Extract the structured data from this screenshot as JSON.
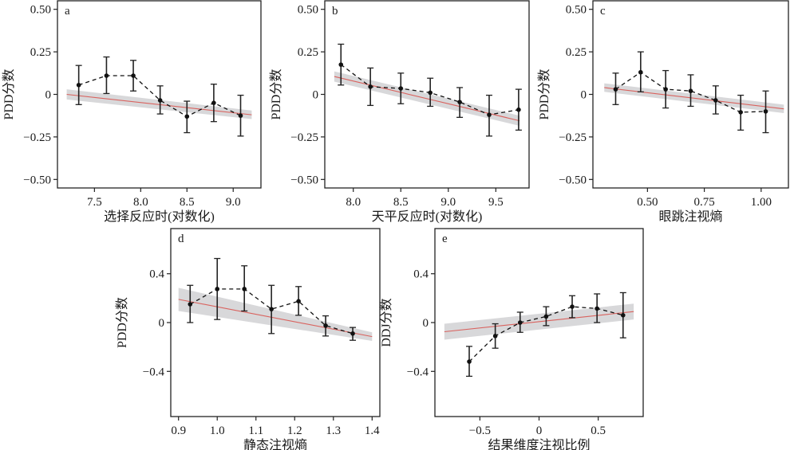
{
  "chart_data": [
    {
      "type": "line",
      "panel": "a",
      "xlabel": "选择反应时(对数化)",
      "ylabel": "PDD分数",
      "xlim": [
        7.1,
        9.3
      ],
      "ylim": [
        -0.55,
        0.55
      ],
      "xticks": [
        7.5,
        8.0,
        8.5,
        9.0
      ],
      "xtick_labels": [
        "7.5",
        "8.0",
        "8.5",
        "9.0"
      ],
      "yticks": [
        0.5,
        0.25,
        0,
        -0.25,
        -0.5
      ],
      "ytick_labels": [
        "0.50",
        "0.25",
        "0",
        "−0.25",
        "−0.50"
      ],
      "points": {
        "x": [
          7.33,
          7.63,
          7.92,
          8.21,
          8.5,
          8.79,
          9.08
        ],
        "y": [
          0.055,
          0.11,
          0.11,
          -0.035,
          -0.13,
          -0.05,
          -0.125
        ],
        "err_low": [
          -0.06,
          0.005,
          0.02,
          -0.115,
          -0.225,
          -0.16,
          -0.245
        ],
        "err_high": [
          0.17,
          0.22,
          0.2,
          0.05,
          -0.04,
          0.06,
          -0.005
        ]
      },
      "fit": {
        "x": [
          7.2,
          9.2
        ],
        "y": [
          0.0,
          -0.12
        ],
        "band_halfwidth": [
          0.03,
          0.025
        ]
      }
    },
    {
      "type": "line",
      "panel": "b",
      "xlabel": "天平反应时(对数化)",
      "ylabel": "PDD分数",
      "xlim": [
        7.7,
        9.85
      ],
      "ylim": [
        -0.55,
        0.55
      ],
      "xticks": [
        8.0,
        8.5,
        9.0,
        9.5
      ],
      "xtick_labels": [
        "8.0",
        "8.5",
        "9.0",
        "9.5"
      ],
      "yticks": [
        0.5,
        0.25,
        0,
        -0.25,
        -0.5
      ],
      "ytick_labels": [
        "0.50",
        "0.25",
        "0",
        "−0.25",
        "−0.50"
      ],
      "points": {
        "x": [
          7.87,
          8.18,
          8.5,
          8.81,
          9.12,
          9.43,
          9.74
        ],
        "y": [
          0.175,
          0.045,
          0.035,
          0.01,
          -0.045,
          -0.12,
          -0.09
        ],
        "err_low": [
          0.055,
          -0.065,
          -0.055,
          -0.07,
          -0.135,
          -0.245,
          -0.21
        ],
        "err_high": [
          0.295,
          0.155,
          0.125,
          0.095,
          0.04,
          -0.005,
          0.03
        ]
      },
      "fit": {
        "x": [
          7.8,
          9.75
        ],
        "y": [
          0.105,
          -0.155
        ],
        "band_halfwidth": [
          0.03,
          0.03
        ]
      }
    },
    {
      "type": "line",
      "panel": "c",
      "xlabel": "眼跳注视熵",
      "ylabel": "PDD分数",
      "xlim": [
        0.26,
        1.12
      ],
      "ylim": [
        -0.55,
        0.55
      ],
      "xticks": [
        0.5,
        0.75,
        1.0
      ],
      "xtick_labels": [
        "0.50",
        "0.75",
        "1.00"
      ],
      "yticks": [
        0.5,
        0.25,
        0,
        -0.25,
        -0.5
      ],
      "ytick_labels": [
        "0.50",
        "0.25",
        "0",
        "−0.25",
        "−0.50"
      ],
      "points": {
        "x": [
          0.36,
          0.47,
          0.58,
          0.69,
          0.8,
          0.91,
          1.02
        ],
        "y": [
          0.03,
          0.13,
          0.03,
          0.02,
          -0.035,
          -0.105,
          -0.1
        ],
        "err_low": [
          -0.06,
          0.015,
          -0.08,
          -0.07,
          -0.115,
          -0.21,
          -0.225
        ],
        "err_high": [
          0.125,
          0.25,
          0.14,
          0.115,
          0.05,
          -0.005,
          0.02
        ]
      },
      "fit": {
        "x": [
          0.31,
          1.1
        ],
        "y": [
          0.04,
          -0.085
        ],
        "band_halfwidth": [
          0.025,
          0.025
        ]
      }
    },
    {
      "type": "line",
      "panel": "d",
      "xlabel": "静态注视熵",
      "ylabel": "PDD分数",
      "xlim": [
        0.88,
        1.42
      ],
      "ylim": [
        -0.77,
        0.77
      ],
      "xticks": [
        0.9,
        1.0,
        1.1,
        1.2,
        1.3,
        1.4
      ],
      "xtick_labels": [
        "0.9",
        "1.0",
        "1.1",
        "1.2",
        "1.3",
        "1.4"
      ],
      "yticks": [
        0.4,
        0,
        -0.4
      ],
      "ytick_labels": [
        "0.4",
        "0",
        "−0.4"
      ],
      "points": {
        "x": [
          0.93,
          1.0,
          1.07,
          1.14,
          1.21,
          1.28,
          1.35
        ],
        "y": [
          0.15,
          0.275,
          0.275,
          0.11,
          0.175,
          -0.025,
          -0.09
        ],
        "err_low": [
          0.0,
          0.025,
          0.095,
          -0.09,
          0.06,
          -0.11,
          -0.145
        ],
        "err_high": [
          0.305,
          0.525,
          0.465,
          0.305,
          0.295,
          0.055,
          -0.04
        ]
      },
      "fit": {
        "x": [
          0.9,
          1.4
        ],
        "y": [
          0.19,
          -0.115
        ],
        "band_halfwidth": [
          0.095,
          0.035
        ]
      }
    },
    {
      "type": "line",
      "panel": "e",
      "xlabel": "结果维度注视比例",
      "ylabel": "DDJ分数",
      "xlim": [
        -0.88,
        0.88
      ],
      "ylim": [
        -0.77,
        0.77
      ],
      "xticks": [
        -0.5,
        0,
        0.5
      ],
      "xtick_labels": [
        "−0.5",
        "0",
        "0.5"
      ],
      "yticks": [
        0.4,
        0,
        -0.4
      ],
      "ytick_labels": [
        "0.4",
        "0",
        "−0.4"
      ],
      "points": {
        "x": [
          -0.59,
          -0.37,
          -0.16,
          0.06,
          0.28,
          0.49,
          0.71
        ],
        "y": [
          -0.32,
          -0.11,
          0.0,
          0.05,
          0.13,
          0.115,
          0.06
        ],
        "err_low": [
          -0.44,
          -0.21,
          -0.08,
          -0.025,
          0.04,
          -0.0,
          -0.125
        ],
        "err_high": [
          -0.195,
          -0.01,
          0.085,
          0.13,
          0.22,
          0.235,
          0.245
        ]
      },
      "fit": {
        "x": [
          -0.8,
          0.8
        ],
        "y": [
          -0.075,
          0.09
        ],
        "band_halfwidth": [
          0.065,
          0.065
        ]
      }
    }
  ]
}
